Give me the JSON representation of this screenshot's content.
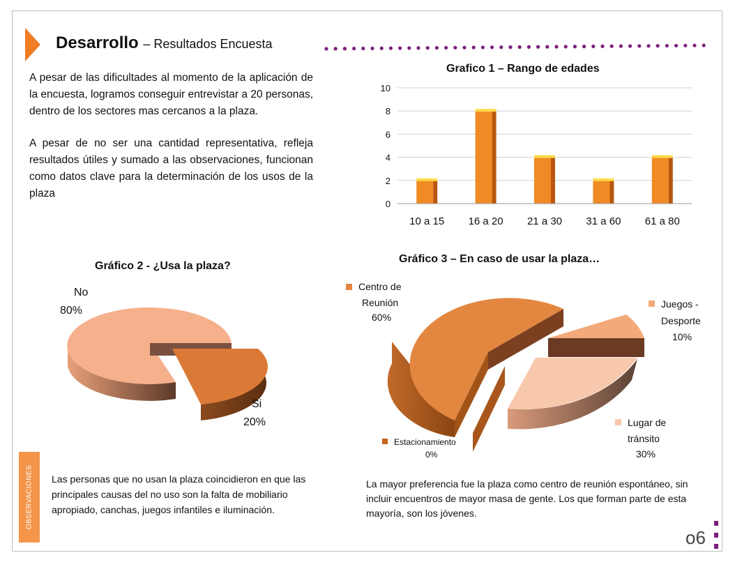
{
  "header": {
    "title": "Desarrollo",
    "subtitle": "– Resultados Encuesta"
  },
  "intro": {
    "p1": "A pesar de las dificultades al momento de la aplicación de la encuesta, logramos conseguir entrevistar a 20 personas, dentro de  los sectores mas cercanos a la plaza.",
    "p2": "A pesar de no ser una cantidad representativa, refleja resultados útiles y sumado a las observaciones, funcionan como datos clave para la determinación de los usos de la plaza"
  },
  "chart_data": [
    {
      "type": "bar",
      "title": "Grafico 1 – Rango de edades",
      "categories": [
        "10 a 15",
        "16 a 20",
        "21 a 30",
        "31 a 60",
        "61 a 80"
      ],
      "values": [
        2,
        8,
        4,
        2,
        4
      ],
      "ylim": [
        0,
        10
      ],
      "yticks": [
        0,
        2,
        4,
        6,
        8,
        10
      ],
      "grid": true,
      "color": "#f08a24"
    },
    {
      "type": "pie",
      "title": "Gráfico 2 - ¿Usa la plaza?",
      "slices": [
        {
          "label": "No",
          "percent": "80%",
          "value": 80,
          "color": "#f6b08c"
        },
        {
          "label": "Si",
          "percent": "20%",
          "value": 20,
          "color": "#db7a36"
        }
      ]
    },
    {
      "type": "pie",
      "title": "Gráfico 3 – En caso de usar la plaza…",
      "slices": [
        {
          "label": "Centro de Reunión",
          "percent": "60%",
          "value": 60,
          "color": "#e38740"
        },
        {
          "label": "Juegos - Desporte",
          "percent": "10%",
          "value": 10,
          "color": "#f4a97a"
        },
        {
          "label": "Lugar de tránsito",
          "percent": "30%",
          "value": 30,
          "color": "#f7c8ac"
        },
        {
          "label": "Estacionamiento",
          "percent": "0%",
          "value": 0,
          "color": "#c8651f"
        }
      ]
    }
  ],
  "observaciones": {
    "tab_label": "OBSERVACIONES",
    "note1": "Las personas que no usan la plaza coincidieron en que las principales causas del no uso son la falta de mobiliario apropiado, canchas, juegos infantiles e iluminación.",
    "note2": "La mayor preferencia fue la plaza como centro de reunión espontáneo, sin incluir encuentros de mayor masa de gente. Los que forman parte de esta mayoría, son los jóvenes."
  },
  "page": {
    "number": "o6",
    "accent": "#7b1f7a"
  }
}
